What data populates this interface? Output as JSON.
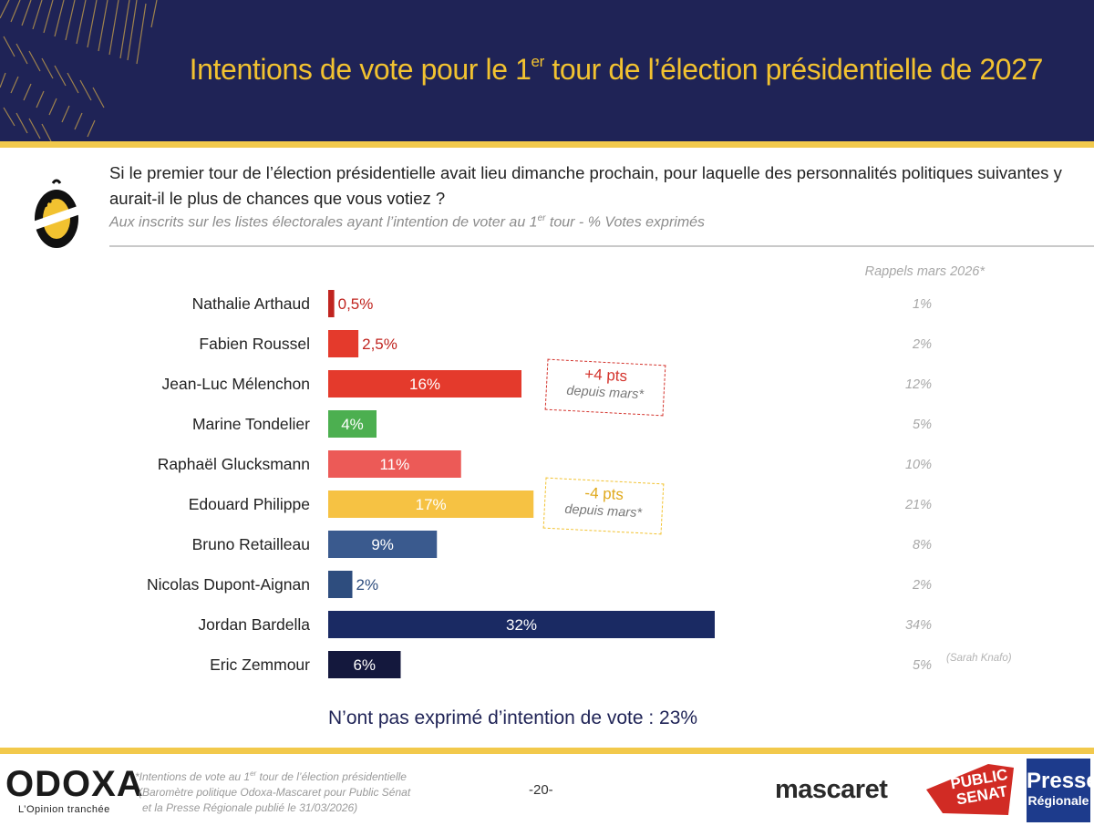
{
  "header": {
    "title_before_sup": "Intentions de vote pour le 1",
    "title_sup": "er",
    "title_after_sup": " tour de l’élection présidentielle de 2027"
  },
  "question": {
    "text": "Si le premier tour de l’élection présidentielle avait lieu dimanche prochain, pour laquelle des personnalités politiques suivantes y aurait-il le plus de chances que vous votiez ?",
    "sample_before_sup": "Aux inscrits sur les listes électorales ayant l’intention de voter au 1",
    "sample_sup": "er",
    "sample_after_sup": " tour  - % Votes exprimés"
  },
  "chart_data": {
    "type": "bar",
    "orientation": "horizontal",
    "categories": [
      "Nathalie Arthaud",
      "Fabien Roussel",
      "Jean-Luc Mélenchon",
      "Marine Tondelier",
      "Raphaël Glucksmann",
      "Edouard Philippe",
      "Bruno Retailleau",
      "Nicolas Dupont-Aignan",
      "Jordan Bardella",
      "Eric Zemmour"
    ],
    "values": [
      0.5,
      2.5,
      16,
      4,
      11,
      17,
      9,
      2,
      32,
      6
    ],
    "labels": [
      "0,5%",
      "2,5%",
      "16%",
      "4%",
      "11%",
      "17%",
      "9%",
      "2%",
      "32%",
      "6%"
    ],
    "colors": [
      "#c0241f",
      "#e43a2c",
      "#e43a2c",
      "#4caf50",
      "#ec5a57",
      "#f6c243",
      "#3a5a8e",
      "#2e4d7e",
      "#1a2a63",
      "#14183d"
    ],
    "label_inside": [
      false,
      false,
      true,
      true,
      true,
      true,
      true,
      false,
      true,
      true
    ],
    "xlim": [
      0,
      32
    ],
    "recall_title": "Rappels mars 2026*",
    "recall": [
      "1%",
      "2%",
      "12%",
      "5%",
      "10%",
      "21%",
      "8%",
      "2%",
      "34%",
      "5%"
    ],
    "notes": [
      {
        "big": "+4 pts",
        "small": "depuis mars*"
      },
      {
        "big": "-4 pts",
        "small": "depuis mars*"
      }
    ],
    "recall_extra": "(Sarah Knafo)",
    "abstain": "N’ont pas exprimé d’intention de vote : 23%"
  },
  "footer": {
    "odoxa": "ODOXA",
    "odoxa_tagline": "L’Opinion tranchée",
    "footnote_line1_before_sup": "*Intentions de vote au 1",
    "footnote_line1_sup": "er",
    "footnote_line1_after_sup": " tour de l’élection présidentielle",
    "footnote_line2": "(Baromètre politique Odoxa-Mascaret pour Public Sénat",
    "footnote_line3": "et la Presse Régionale publié le 31/03/2026)",
    "page": "-20-",
    "mascaret": "mascaret",
    "public_senat_line1": "PUBLIC",
    "public_senat_line2": "SENAT",
    "presse_line1": "Presse",
    "presse_line2": "Régionale"
  },
  "colors": {
    "navy": "#1f2356",
    "gold": "#f2c94c",
    "title_gold": "#f2c230"
  }
}
